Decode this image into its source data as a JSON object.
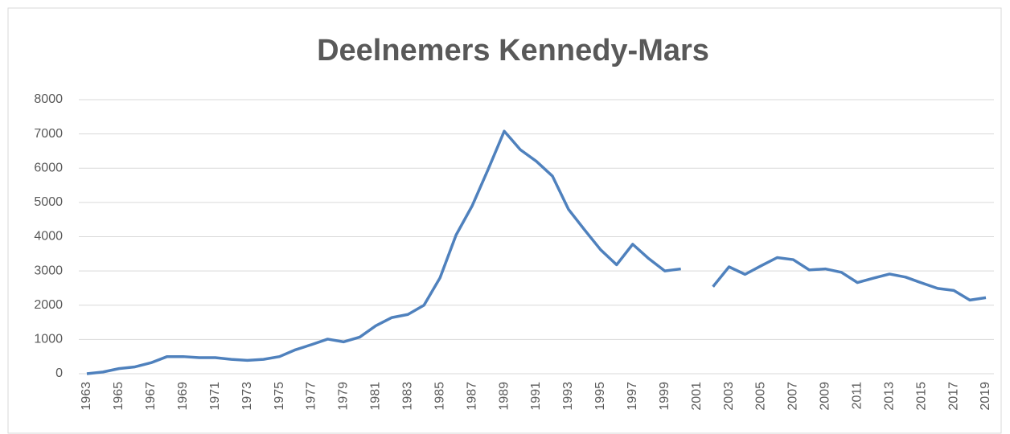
{
  "chart_data": {
    "type": "line",
    "title": "Deelnemers Kennedy-Mars",
    "categories": [
      "1963",
      null,
      "1965",
      null,
      "1967",
      null,
      "1969",
      null,
      "1971",
      null,
      "1973",
      null,
      "1975",
      null,
      "1977",
      null,
      "1979",
      null,
      "1981",
      null,
      "1983",
      null,
      "1985",
      null,
      "1987",
      null,
      "1989",
      null,
      "1991",
      null,
      "1993",
      null,
      "1995",
      null,
      "1997",
      null,
      "1999",
      null,
      "2001",
      null,
      "2003",
      null,
      "2005",
      null,
      "2007",
      null,
      "2009",
      null,
      "2011",
      null,
      "2013",
      null,
      "2015",
      null,
      "2017",
      null,
      "2019"
    ],
    "series": [
      {
        "name": "Deelnemers",
        "color": "#4f81bd",
        "values": [
          0,
          50,
          150,
          200,
          320,
          500,
          500,
          470,
          470,
          420,
          390,
          420,
          500,
          700,
          850,
          1010,
          930,
          1070,
          1400,
          1640,
          1730,
          2000,
          2800,
          4050,
          4900,
          5970,
          7080,
          6540,
          6200,
          5770,
          4800,
          4200,
          3620,
          3180,
          3780,
          3360,
          3000,
          3060,
          null,
          2540,
          3120,
          2900,
          3150,
          3390,
          3330,
          3030,
          3060,
          2960,
          2660,
          2790,
          2910,
          2820,
          2650,
          2490,
          2430,
          2150,
          2220
        ]
      }
    ],
    "ylim": [
      0,
      8000
    ],
    "yticks": [
      0,
      1000,
      2000,
      3000,
      4000,
      5000,
      6000,
      7000,
      8000
    ],
    "grid": true
  }
}
